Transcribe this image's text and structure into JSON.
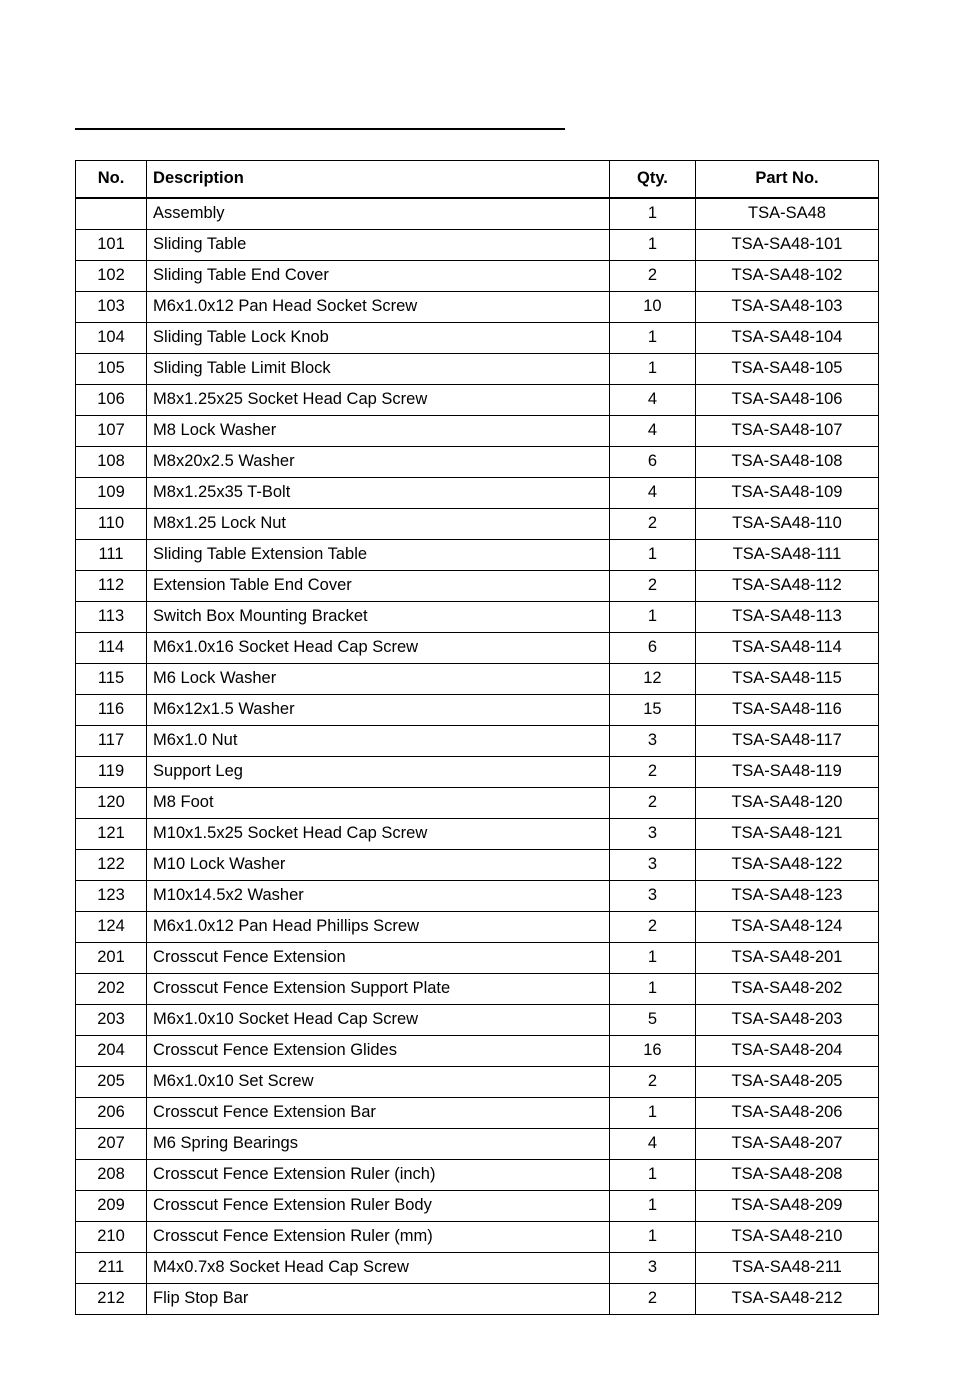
{
  "table": {
    "columns": {
      "no": "No.",
      "desc": "Description",
      "qty": "Qty.",
      "part": "Part No."
    },
    "rows": [
      {
        "no": "",
        "desc": "Assembly",
        "qty": "1",
        "part": "TSA-SA48"
      },
      {
        "no": "101",
        "desc": "Sliding Table",
        "qty": "1",
        "part": "TSA-SA48-101"
      },
      {
        "no": "102",
        "desc": "Sliding Table End Cover",
        "qty": "2",
        "part": "TSA-SA48-102"
      },
      {
        "no": "103",
        "desc": "M6x1.0x12 Pan Head Socket Screw",
        "qty": "10",
        "part": "TSA-SA48-103"
      },
      {
        "no": "104",
        "desc": "Sliding Table Lock Knob",
        "qty": "1",
        "part": "TSA-SA48-104"
      },
      {
        "no": "105",
        "desc": "Sliding Table Limit Block",
        "qty": "1",
        "part": "TSA-SA48-105"
      },
      {
        "no": "106",
        "desc": "M8x1.25x25 Socket Head Cap Screw",
        "qty": "4",
        "part": "TSA-SA48-106"
      },
      {
        "no": "107",
        "desc": "M8 Lock Washer",
        "qty": "4",
        "part": "TSA-SA48-107"
      },
      {
        "no": "108",
        "desc": "M8x20x2.5 Washer",
        "qty": "6",
        "part": "TSA-SA48-108"
      },
      {
        "no": "109",
        "desc": "M8x1.25x35 T-Bolt",
        "qty": "4",
        "part": "TSA-SA48-109"
      },
      {
        "no": "110",
        "desc": "M8x1.25 Lock Nut",
        "qty": "2",
        "part": "TSA-SA48-110"
      },
      {
        "no": "111",
        "desc": "Sliding Table Extension Table",
        "qty": "1",
        "part": "TSA-SA48-111"
      },
      {
        "no": "112",
        "desc": "Extension Table End Cover",
        "qty": "2",
        "part": "TSA-SA48-112"
      },
      {
        "no": "113",
        "desc": "Switch Box Mounting Bracket",
        "qty": "1",
        "part": "TSA-SA48-113"
      },
      {
        "no": "114",
        "desc": "M6x1.0x16 Socket Head Cap Screw",
        "qty": "6",
        "part": "TSA-SA48-114"
      },
      {
        "no": "115",
        "desc": "M6 Lock Washer",
        "qty": "12",
        "part": "TSA-SA48-115"
      },
      {
        "no": "116",
        "desc": "M6x12x1.5 Washer",
        "qty": "15",
        "part": "TSA-SA48-116"
      },
      {
        "no": "117",
        "desc": "M6x1.0 Nut",
        "qty": "3",
        "part": "TSA-SA48-117"
      },
      {
        "no": "119",
        "desc": "Support Leg",
        "qty": "2",
        "part": "TSA-SA48-119"
      },
      {
        "no": "120",
        "desc": "M8 Foot",
        "qty": "2",
        "part": "TSA-SA48-120"
      },
      {
        "no": "121",
        "desc": "M10x1.5x25 Socket Head Cap Screw",
        "qty": "3",
        "part": "TSA-SA48-121"
      },
      {
        "no": "122",
        "desc": "M10 Lock Washer",
        "qty": "3",
        "part": "TSA-SA48-122"
      },
      {
        "no": "123",
        "desc": "M10x14.5x2 Washer",
        "qty": "3",
        "part": "TSA-SA48-123"
      },
      {
        "no": "124",
        "desc": "M6x1.0x12 Pan Head Phillips Screw",
        "qty": "2",
        "part": "TSA-SA48-124"
      },
      {
        "no": "201",
        "desc": "Crosscut Fence Extension",
        "qty": "1",
        "part": "TSA-SA48-201"
      },
      {
        "no": "202",
        "desc": "Crosscut Fence Extension Support Plate",
        "qty": "1",
        "part": "TSA-SA48-202"
      },
      {
        "no": "203",
        "desc": "M6x1.0x10 Socket Head Cap Screw",
        "qty": "5",
        "part": "TSA-SA48-203"
      },
      {
        "no": "204",
        "desc": "Crosscut Fence Extension Glides",
        "qty": "16",
        "part": "TSA-SA48-204"
      },
      {
        "no": "205",
        "desc": "M6x1.0x10 Set Screw",
        "qty": "2",
        "part": "TSA-SA48-205"
      },
      {
        "no": "206",
        "desc": "Crosscut Fence Extension Bar",
        "qty": "1",
        "part": "TSA-SA48-206"
      },
      {
        "no": "207",
        "desc": "M6 Spring Bearings",
        "qty": "4",
        "part": "TSA-SA48-207"
      },
      {
        "no": "208",
        "desc": "Crosscut Fence Extension Ruler (inch)",
        "qty": "1",
        "part": "TSA-SA48-208"
      },
      {
        "no": "209",
        "desc": "Crosscut Fence Extension Ruler Body",
        "qty": "1",
        "part": "TSA-SA48-209"
      },
      {
        "no": "210",
        "desc": "Crosscut Fence Extension Ruler (mm)",
        "qty": "1",
        "part": "TSA-SA48-210"
      },
      {
        "no": "211",
        "desc": "M4x0.7x8 Socket Head Cap Screw",
        "qty": "3",
        "part": "TSA-SA48-211"
      },
      {
        "no": "212",
        "desc": "Flip Stop Bar",
        "qty": "2",
        "part": "TSA-SA48-212"
      }
    ]
  }
}
